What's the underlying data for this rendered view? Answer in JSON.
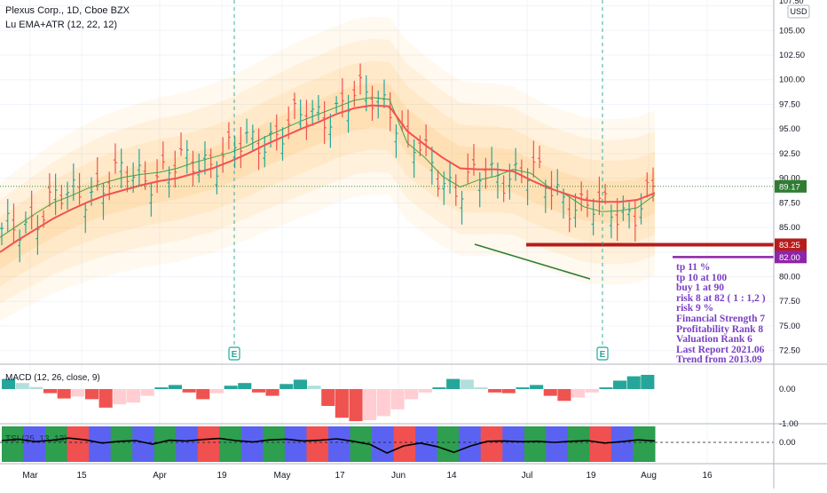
{
  "header": {
    "symbol_line": "Plexus Corp., 1D, Cboe BZX",
    "indicator_line": "Lu EMA+ATR (12, 22, 12)",
    "currency_badge": "USD"
  },
  "chart_data": [
    {
      "type": "candlestick",
      "title": "Plexus Corp., 1D, Cboe BZX",
      "y_axis_ticks": [
        107.5,
        105.0,
        102.5,
        100.0,
        97.5,
        95.0,
        92.5,
        90.0,
        87.5,
        85.0,
        82.5,
        80.0,
        77.5,
        75.0,
        72.5
      ],
      "ylim": [
        71.3,
        108.0
      ],
      "x_ticks": [
        "Mar",
        "15",
        "Apr",
        "19",
        "May",
        "17",
        "Jun",
        "14",
        "Jul",
        "19",
        "Aug",
        "16"
      ],
      "last_price": 89.17,
      "ema_fast": [
        84.0,
        85.2,
        86.4,
        87.5,
        88.2,
        89.0,
        89.6,
        90.1,
        90.4,
        90.6,
        91.0,
        91.6,
        92.1,
        92.6,
        93.3,
        94.2,
        95.0,
        95.8,
        96.5,
        97.2,
        97.9,
        98.2,
        98.0,
        93.6,
        92.1,
        90.2,
        89.1,
        89.8,
        90.2,
        90.9,
        90.5,
        89.1,
        88.3,
        87.1,
        86.6,
        86.7,
        87.0,
        88.3
      ],
      "ema_slow": [
        82.5,
        83.7,
        84.8,
        85.9,
        86.8,
        87.6,
        88.3,
        88.8,
        89.3,
        89.7,
        90.0,
        90.5,
        91.0,
        91.7,
        92.5,
        93.4,
        94.2,
        95.0,
        95.7,
        96.5,
        97.1,
        97.4,
        97.3,
        94.8,
        93.4,
        92.1,
        91.0,
        90.9,
        90.9,
        90.7,
        89.8,
        89.0,
        88.4,
        87.8,
        87.6,
        87.6,
        87.8,
        88.5
      ],
      "atr_band_width": [
        7.0,
        7.2,
        7.4,
        7.6,
        7.8,
        8.0,
        8.2,
        8.3,
        8.4,
        8.5,
        8.5,
        8.5,
        8.6,
        8.6,
        8.7,
        8.8,
        8.9,
        9.0,
        9.0,
        9.0,
        9.0,
        9.0,
        9.0,
        9.1,
        9.1,
        9.0,
        8.9,
        8.8,
        8.7,
        8.6,
        8.5,
        8.4,
        8.4,
        8.4,
        8.4,
        8.4,
        8.4,
        8.4
      ],
      "horizontal_levels": [
        {
          "label": "83.25",
          "value": 83.25,
          "color": "#b71c1c"
        },
        {
          "label": "82.00",
          "value": 82.0,
          "color": "#8e24aa"
        }
      ],
      "earnings_markers": [
        {
          "label": "E",
          "x_label": "Apr 19 week"
        },
        {
          "label": "E",
          "x_label": "Jul 19"
        }
      ],
      "trend_line_color": "#2e7d32"
    },
    {
      "type": "bar",
      "title": "MACD (12, 26, close, 9)",
      "y_axis_ticks": [
        0.0,
        -1.0
      ],
      "histogram": [
        0.3,
        0.18,
        0.06,
        -0.12,
        -0.28,
        -0.22,
        -0.3,
        -0.55,
        -0.45,
        -0.4,
        -0.2,
        0.05,
        0.12,
        -0.1,
        -0.3,
        -0.12,
        0.1,
        0.18,
        -0.1,
        -0.2,
        0.15,
        0.28,
        0.1,
        -0.5,
        -0.85,
        -0.95,
        -0.92,
        -0.8,
        -0.6,
        -0.3,
        -0.1,
        0.05,
        0.3,
        0.28,
        0.05,
        -0.1,
        -0.12,
        0.05,
        0.12,
        -0.2,
        -0.35,
        -0.25,
        -0.1,
        0.05,
        0.25,
        0.38,
        0.42
      ],
      "positive_color": "#26a69a",
      "negative_color": "#ef5350"
    },
    {
      "type": "line",
      "title": "TSI (25, 13, 13)",
      "y_axis_ticks": [
        0.0
      ],
      "line_values": [
        0.05,
        0.09,
        0.02,
        0.06,
        0.12,
        0.07,
        -0.02,
        0.03,
        0.05,
        -0.05,
        0.06,
        0.04,
        0.08,
        0.11,
        0.05,
        0.01,
        0.07,
        0.09,
        0.04,
        0.06,
        0.1,
        0.03,
        -0.06,
        -0.3,
        -0.1,
        -0.02,
        -0.12,
        -0.28,
        -0.1,
        0.03,
        0.04,
        0.02,
        0.03,
        0.0,
        0.03,
        0.05,
        -0.02,
        0.02,
        0.07,
        0.04
      ],
      "background_segments": [
        "green",
        "blue",
        "green",
        "red",
        "blue",
        "green",
        "blue",
        "green",
        "blue",
        "red",
        "green",
        "blue",
        "green",
        "blue",
        "red",
        "blue",
        "green",
        "blue",
        "red",
        "blue",
        "green",
        "blue",
        "red",
        "blue",
        "green",
        "blue",
        "green",
        "red",
        "blue",
        "green"
      ],
      "segment_colors": {
        "green": "#2e9e4f",
        "blue": "#5b62f2",
        "red": "#f05050"
      }
    }
  ],
  "notes": [
    "tp 11 %",
    "tp 10 at 100",
    "buy 1 at 90",
    "risk 8 at 82 ( 1 : 1,2 )",
    "risk 9 %",
    "Financial Strength 7",
    "Profitability Rank 8",
    "Valuation Rank 6",
    "Last Report  2021.06",
    "Trend from  2013.09"
  ],
  "labels": {
    "price_axis_unit_cut": "107.50",
    "macd_axis": [
      "0.00",
      "-1.00"
    ],
    "tsi_axis": [
      "0.00"
    ],
    "x_axis": [
      "Mar",
      "15",
      "Apr",
      "19",
      "May",
      "17",
      "Jun",
      "14",
      "Jul",
      "19",
      "Aug",
      "16"
    ]
  }
}
